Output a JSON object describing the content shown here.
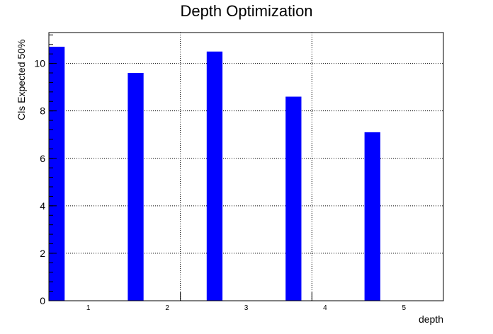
{
  "chart_data": {
    "type": "bar",
    "title": "Depth Optimization",
    "xlabel": "depth",
    "ylabel": "Cls Expected 50%",
    "categories": [
      "1",
      "2",
      "3",
      "4",
      "5"
    ],
    "values": [
      10.7,
      9.6,
      10.5,
      8.6,
      7.1
    ],
    "yticks": [
      "0",
      "2",
      "4",
      "6",
      "8",
      "10"
    ],
    "ylim": [
      0,
      11.3
    ],
    "bar_color": "#0000ff",
    "grid": true
  }
}
